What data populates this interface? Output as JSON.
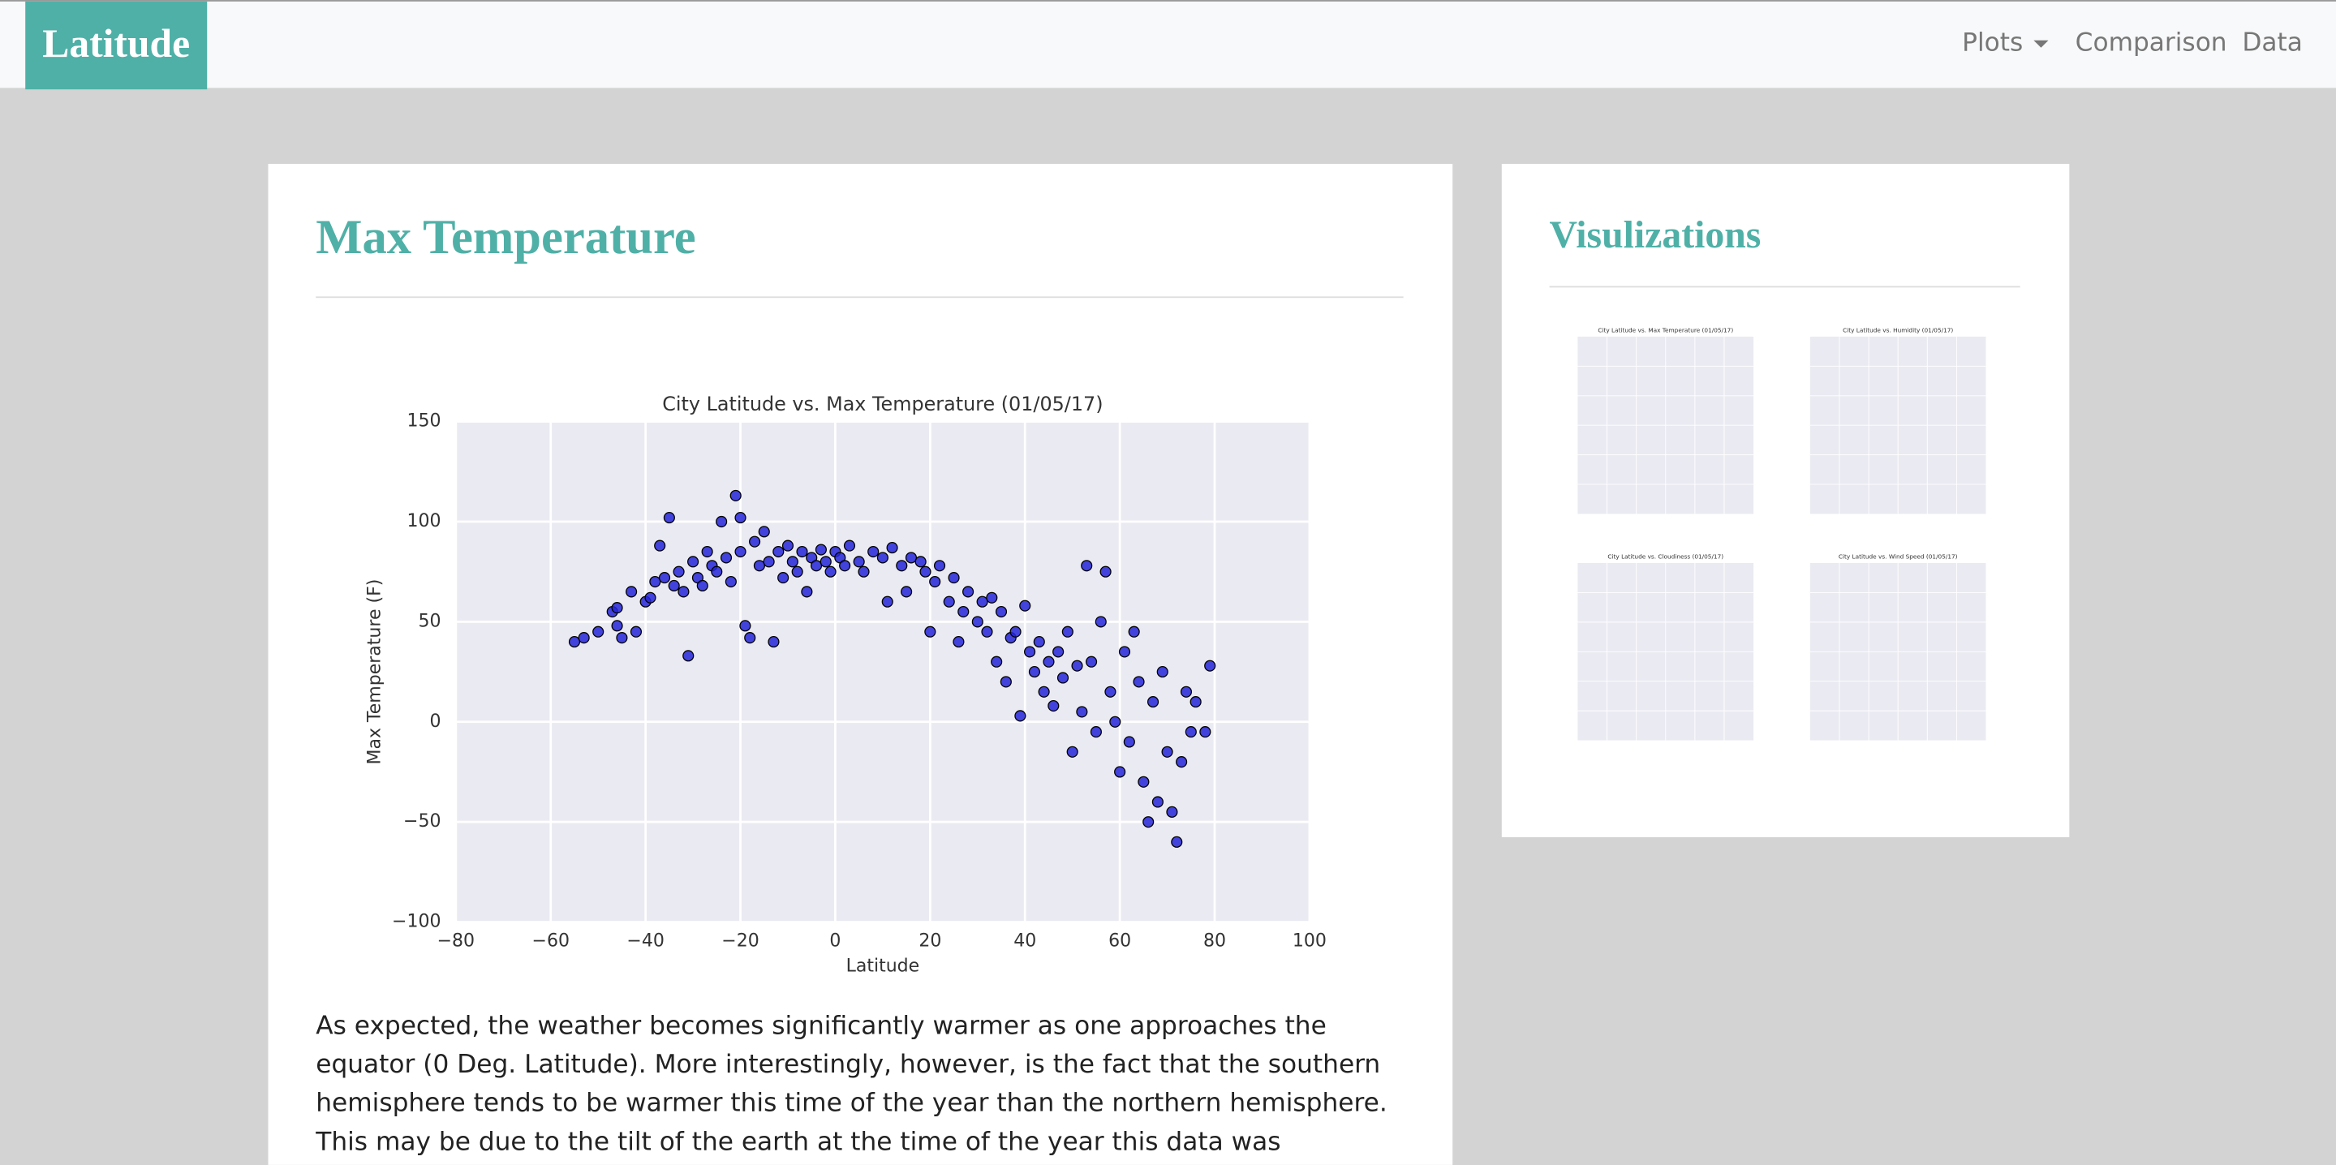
{
  "navbar": {
    "brand": "Latitude",
    "items": [
      "Plots",
      "Comparison",
      "Data"
    ]
  },
  "main": {
    "title": "Max Temperature",
    "chart_data": {
      "type": "scatter",
      "title": "City Latitude vs. Max Temperature (01/05/17)",
      "x_label": "Latitude",
      "y_label": "Max Temperature (F)",
      "color": "#2424d8",
      "xlim": [
        -80,
        100
      ],
      "ylim": [
        -100,
        150
      ],
      "xticks": [
        {
          "value": -80,
          "label": "−80"
        },
        {
          "value": -60,
          "label": "−60"
        },
        {
          "value": -40,
          "label": "−40"
        },
        {
          "value": -20,
          "label": "−20"
        },
        0,
        20,
        40,
        60,
        80,
        100
      ],
      "yticks": [
        {
          "value": -100,
          "label": "−100"
        },
        {
          "value": -50,
          "label": "−50"
        },
        0,
        50,
        100,
        150
      ],
      "grid": true,
      "x": [
        -55,
        -53,
        -50,
        -47,
        -46,
        -46,
        -45,
        -43,
        -42,
        -40,
        -39,
        -38,
        -37,
        -36,
        -35,
        -34,
        -33,
        -32,
        -31,
        -30,
        -29,
        -28,
        -27,
        -26,
        -25,
        -24,
        -23,
        -22,
        -21,
        -20,
        -20,
        -19,
        -18,
        -17,
        -16,
        -15,
        -14,
        -13,
        -12,
        -11,
        -10,
        -9,
        -8,
        -7,
        -6,
        -5,
        -4,
        -3,
        -2,
        -1,
        0,
        1,
        2,
        3,
        5,
        6,
        8,
        10,
        11,
        12,
        14,
        15,
        16,
        18,
        19,
        20,
        21,
        22,
        24,
        25,
        26,
        27,
        28,
        30,
        31,
        32,
        33,
        34,
        35,
        36,
        37,
        38,
        39,
        40,
        41,
        42,
        43,
        44,
        45,
        46,
        47,
        48,
        49,
        50,
        51,
        52,
        53,
        54,
        55,
        56,
        57,
        58,
        59,
        60,
        61,
        62,
        63,
        64,
        65,
        66,
        67,
        68,
        69,
        70,
        71,
        72,
        73,
        74,
        75,
        76,
        78,
        79
      ],
      "y": [
        40,
        42,
        45,
        55,
        57,
        48,
        42,
        65,
        45,
        60,
        62,
        70,
        88,
        72,
        102,
        68,
        75,
        65,
        33,
        80,
        72,
        68,
        85,
        78,
        75,
        100,
        82,
        70,
        113,
        102,
        85,
        48,
        42,
        90,
        78,
        95,
        80,
        40,
        85,
        72,
        88,
        80,
        75,
        85,
        65,
        82,
        78,
        86,
        80,
        75,
        85,
        82,
        78,
        88,
        80,
        75,
        85,
        82,
        60,
        87,
        78,
        65,
        82,
        80,
        75,
        45,
        70,
        78,
        60,
        72,
        40,
        55,
        65,
        50,
        60,
        45,
        62,
        30,
        55,
        20,
        42,
        45,
        3,
        58,
        35,
        25,
        40,
        15,
        30,
        8,
        35,
        22,
        45,
        -15,
        28,
        5,
        78,
        30,
        -5,
        50,
        75,
        15,
        0,
        -25,
        35,
        -10,
        45,
        20,
        -30,
        -50,
        10,
        -40,
        25,
        -15,
        -45,
        -60,
        -20,
        15,
        -5,
        10,
        -5,
        28
      ]
    },
    "paragraph": "As expected, the weather becomes significantly warmer as one approaches the equator (0 Deg. Latitude). More interestingly, however, is the fact that the southern hemisphere tends to be warmer this time of the year than the northern hemisphere. This may be due to the tilt of the earth at the time of the year this data was gathered."
  },
  "sidebar": {
    "title": "Visulizations",
    "thumbnails": [
      "City Latitude vs. Max Temperature (01/05/17)",
      "City Latitude vs. Humidity (01/05/17)",
      "City Latitude vs. Cloudiness (01/05/17)",
      "City Latitude vs. Wind Speed (01/05/17)"
    ]
  }
}
